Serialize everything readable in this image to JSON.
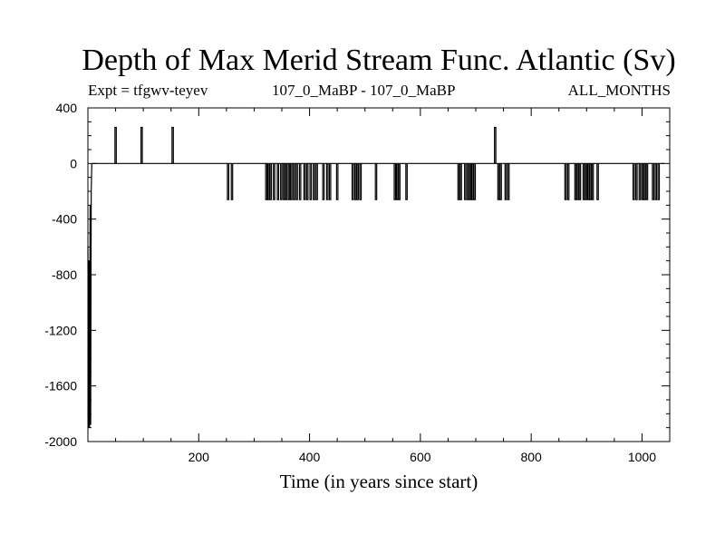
{
  "chart_data": {
    "type": "line",
    "title": "Depth of Max Merid Stream Func. Atlantic (Sv)",
    "subtitle_left": "Expt = tfgwv-teyev",
    "subtitle_center": "107_0_MaBP - 107_0_MaBP",
    "subtitle_right": "ALL_MONTHS",
    "xlabel": "Time (in years since start)",
    "ylabel": "",
    "xlim": [
      0,
      1050
    ],
    "ylim": [
      -2000,
      400
    ],
    "x_ticks": [
      200,
      400,
      600,
      800,
      1000
    ],
    "y_ticks": [
      400,
      0,
      -400,
      -800,
      -1200,
      -1600,
      -2000
    ],
    "x_tick_labels": [
      "200",
      "400",
      "600",
      "800",
      "1000"
    ],
    "y_tick_labels": [
      "400",
      "0",
      "-400",
      "-800",
      "-1200",
      "-1600",
      "-2000"
    ],
    "series": [
      {
        "baseline": 0,
        "initial_segment": [
          [
            0,
            -600
          ],
          [
            1,
            -1900
          ],
          [
            2,
            -700
          ],
          [
            3,
            -1900
          ],
          [
            4,
            -300
          ],
          [
            5,
            -1880
          ],
          [
            6,
            -200
          ],
          [
            7,
            0
          ]
        ],
        "positive_spikes": [
          {
            "x": 50,
            "value": 260
          },
          {
            "x": 97,
            "value": 260
          },
          {
            "x": 153,
            "value": 260
          },
          {
            "x": 735,
            "value": 260
          }
        ],
        "negative_spikes": [
          {
            "x": 253,
            "value": -260
          },
          {
            "x": 260,
            "value": -260
          },
          {
            "x": 322,
            "value": -260
          },
          {
            "x": 326,
            "value": -260
          },
          {
            "x": 330,
            "value": -260
          },
          {
            "x": 336,
            "value": -260
          },
          {
            "x": 343,
            "value": -260
          },
          {
            "x": 349,
            "value": -260
          },
          {
            "x": 354,
            "value": -260
          },
          {
            "x": 358,
            "value": -260
          },
          {
            "x": 363,
            "value": -260
          },
          {
            "x": 367,
            "value": -260
          },
          {
            "x": 372,
            "value": -260
          },
          {
            "x": 377,
            "value": -260
          },
          {
            "x": 383,
            "value": -260
          },
          {
            "x": 391,
            "value": -260
          },
          {
            "x": 396,
            "value": -260
          },
          {
            "x": 402,
            "value": -260
          },
          {
            "x": 408,
            "value": -260
          },
          {
            "x": 413,
            "value": -260
          },
          {
            "x": 425,
            "value": -260
          },
          {
            "x": 432,
            "value": -260
          },
          {
            "x": 437,
            "value": -260
          },
          {
            "x": 450,
            "value": -260
          },
          {
            "x": 478,
            "value": -260
          },
          {
            "x": 483,
            "value": -260
          },
          {
            "x": 487,
            "value": -260
          },
          {
            "x": 492,
            "value": -260
          },
          {
            "x": 520,
            "value": -260
          },
          {
            "x": 554,
            "value": -260
          },
          {
            "x": 558,
            "value": -260
          },
          {
            "x": 562,
            "value": -260
          },
          {
            "x": 575,
            "value": -260
          },
          {
            "x": 669,
            "value": -260
          },
          {
            "x": 673,
            "value": -260
          },
          {
            "x": 681,
            "value": -260
          },
          {
            "x": 686,
            "value": -260
          },
          {
            "x": 690,
            "value": -260
          },
          {
            "x": 694,
            "value": -260
          },
          {
            "x": 698,
            "value": -260
          },
          {
            "x": 741,
            "value": -260
          },
          {
            "x": 745,
            "value": -260
          },
          {
            "x": 754,
            "value": -260
          },
          {
            "x": 759,
            "value": -260
          },
          {
            "x": 862,
            "value": -260
          },
          {
            "x": 867,
            "value": -260
          },
          {
            "x": 880,
            "value": -260
          },
          {
            "x": 884,
            "value": -260
          },
          {
            "x": 888,
            "value": -260
          },
          {
            "x": 895,
            "value": -260
          },
          {
            "x": 899,
            "value": -260
          },
          {
            "x": 903,
            "value": -260
          },
          {
            "x": 907,
            "value": -260
          },
          {
            "x": 911,
            "value": -260
          },
          {
            "x": 920,
            "value": -260
          },
          {
            "x": 985,
            "value": -260
          },
          {
            "x": 990,
            "value": -260
          },
          {
            "x": 996,
            "value": -260
          },
          {
            "x": 1001,
            "value": -260
          },
          {
            "x": 1005,
            "value": -260
          },
          {
            "x": 1009,
            "value": -260
          },
          {
            "x": 1020,
            "value": -260
          },
          {
            "x": 1025,
            "value": -260
          },
          {
            "x": 1030,
            "value": -260
          }
        ]
      }
    ],
    "grid": false,
    "legend": "none",
    "line_color": "#000000"
  }
}
